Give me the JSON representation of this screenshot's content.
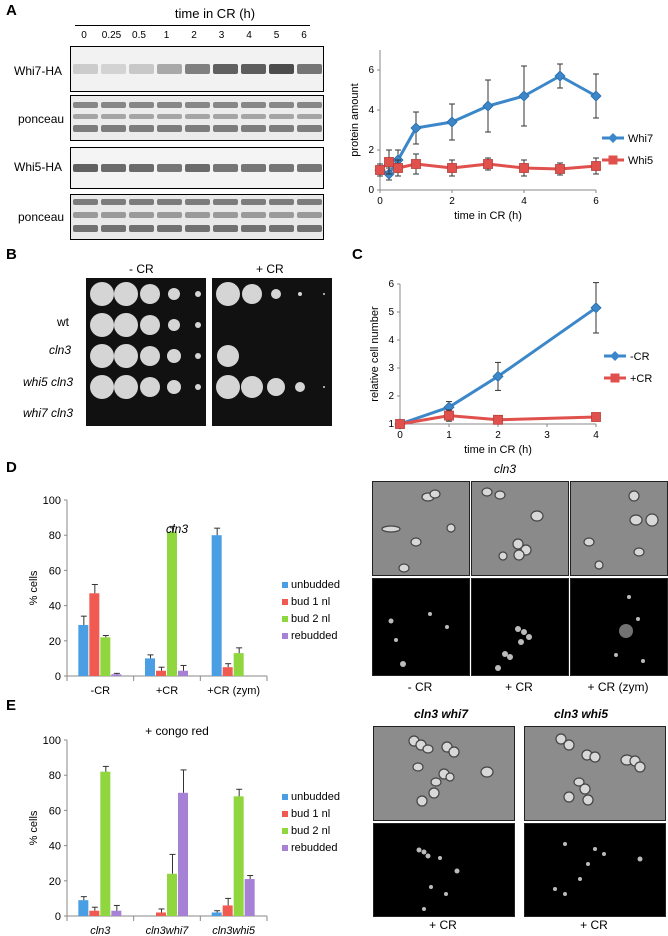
{
  "panelA": {
    "letter": "A",
    "time_header": "time in CR (h)",
    "time_points": [
      "0",
      "0.25",
      "0.5",
      "1",
      "2",
      "3",
      "4",
      "5",
      "6"
    ],
    "rows": [
      "Whi7-HA",
      "ponceau",
      "Whi5-HA",
      "ponceau"
    ]
  },
  "panelB": {
    "letter": "B",
    "minus_cr": "- CR",
    "plus_cr": "+ CR",
    "strains": [
      "wt",
      "cln3",
      "whi5 cln3",
      "whi7 cln3"
    ]
  },
  "panelD": {
    "letter": "D",
    "microscopy_title": "cln3",
    "conditions": [
      "- CR",
      "+ CR",
      "+ CR (zym)"
    ]
  },
  "panelE": {
    "letter": "E",
    "microscopy_titles": [
      "cln3 whi7",
      "cln3 whi5"
    ],
    "conditions": [
      "+ CR",
      "+ CR"
    ]
  },
  "colors": {
    "whi7": "#3b87c9",
    "whi5": "#e0504d",
    "unbudded": "#4a9ee3",
    "bud1": "#f05a50",
    "bud2": "#8fd63f",
    "rebudded": "#a681d6"
  },
  "chart_data": [
    {
      "id": "A",
      "type": "line",
      "xlabel": "time in CR (h)",
      "ylabel": "protein amount",
      "xlim": [
        0,
        6
      ],
      "ylim": [
        0,
        7
      ],
      "xticks": [
        0,
        2,
        4,
        6
      ],
      "yticks": [
        0,
        2,
        4,
        6
      ],
      "legend_position": "right",
      "series": [
        {
          "name": "Whi7",
          "x": [
            0,
            0.25,
            0.5,
            1,
            2,
            3,
            4,
            5,
            6
          ],
          "y": [
            1.0,
            0.8,
            1.5,
            3.1,
            3.4,
            4.2,
            4.7,
            5.7,
            4.7
          ],
          "err": [
            0.3,
            0.3,
            0.5,
            0.8,
            0.9,
            1.3,
            1.5,
            0.6,
            1.1
          ]
        },
        {
          "name": "Whi5",
          "x": [
            0,
            0.25,
            0.5,
            1,
            2,
            3,
            4,
            5,
            6
          ],
          "y": [
            1.0,
            1.4,
            1.1,
            1.3,
            1.1,
            1.3,
            1.1,
            1.05,
            1.2
          ],
          "err": [
            0.2,
            0.6,
            0.4,
            0.5,
            0.4,
            0.3,
            0.4,
            0.3,
            0.4
          ]
        }
      ]
    },
    {
      "id": "C",
      "type": "line",
      "xlabel": "time in CR (h)",
      "ylabel": "relative cell number",
      "xlim": [
        0,
        4
      ],
      "ylim": [
        1,
        6
      ],
      "xticks": [
        0,
        1,
        2,
        3,
        4
      ],
      "yticks": [
        1,
        2,
        3,
        4,
        5,
        6
      ],
      "legend_position": "right",
      "series": [
        {
          "name": "-CR",
          "x": [
            0,
            1,
            2,
            4
          ],
          "y": [
            1.0,
            1.6,
            2.7,
            5.15
          ],
          "err": [
            0.05,
            0.2,
            0.5,
            0.9
          ]
        },
        {
          "name": "+CR",
          "x": [
            0,
            1,
            2,
            4
          ],
          "y": [
            1.0,
            1.3,
            1.15,
            1.25
          ],
          "err": [
            0.05,
            0.2,
            0.1,
            0.1
          ]
        }
      ]
    },
    {
      "id": "D",
      "type": "bar",
      "title": "cln3",
      "ylabel": "% cells",
      "ylim": [
        0,
        100
      ],
      "yticks": [
        0,
        20,
        40,
        60,
        80,
        100
      ],
      "categories": [
        "-CR",
        "+CR",
        "+CR (zym)"
      ],
      "legend_position": "right",
      "series": [
        {
          "name": "unbudded",
          "values": [
            29,
            10,
            80
          ],
          "err": [
            5,
            2,
            4
          ]
        },
        {
          "name": "bud 1 nl",
          "values": [
            47,
            3,
            5
          ],
          "err": [
            5,
            2,
            2
          ]
        },
        {
          "name": "bud 2 nl",
          "values": [
            22,
            82,
            13
          ],
          "err": [
            1,
            3,
            3
          ]
        },
        {
          "name": "rebudded",
          "values": [
            1,
            3,
            0
          ],
          "err": [
            0.5,
            3,
            0
          ]
        }
      ]
    },
    {
      "id": "E",
      "type": "bar",
      "title": "+ congo red",
      "ylabel": "% cells",
      "ylim": [
        0,
        100
      ],
      "yticks": [
        0,
        20,
        40,
        60,
        80,
        100
      ],
      "categories": [
        "cln3",
        "cln3whi7",
        "cln3whi5"
      ],
      "legend_position": "right",
      "series": [
        {
          "name": "unbudded",
          "values": [
            9,
            0,
            2
          ],
          "err": [
            2,
            0,
            1
          ]
        },
        {
          "name": "bud 1 nl",
          "values": [
            3,
            2,
            6
          ],
          "err": [
            2,
            2,
            4
          ]
        },
        {
          "name": "bud 2 nl",
          "values": [
            82,
            24,
            68
          ],
          "err": [
            3,
            11,
            4
          ]
        },
        {
          "name": "rebudded",
          "values": [
            3,
            70,
            21
          ],
          "err": [
            3,
            13,
            2
          ]
        }
      ]
    }
  ]
}
